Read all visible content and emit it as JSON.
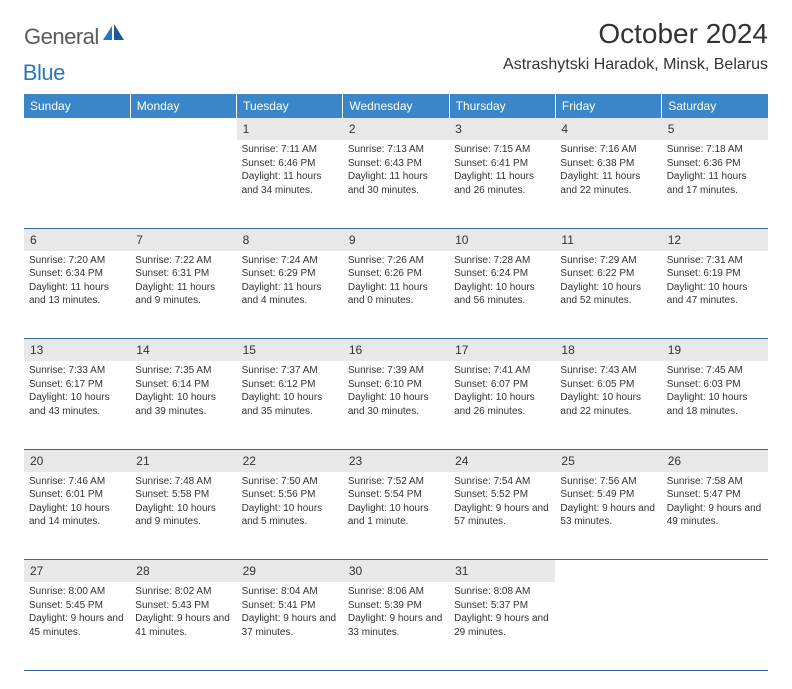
{
  "logo": {
    "text1": "General",
    "text2": "Blue"
  },
  "title": "October 2024",
  "location": "Astrashytski Haradok, Minsk, Belarus",
  "weekdays": [
    "Sunday",
    "Monday",
    "Tuesday",
    "Wednesday",
    "Thursday",
    "Friday",
    "Saturday"
  ],
  "colors": {
    "header_bg": "#3a86c8",
    "header_text": "#ffffff",
    "daynum_bg": "#e8e8e8",
    "border": "#3a6a9c",
    "logo_gray": "#5a5a5a",
    "logo_blue": "#2a77b8",
    "text": "#333333"
  },
  "weeks": [
    [
      null,
      null,
      {
        "n": "1",
        "sunrise": "Sunrise: 7:11 AM",
        "sunset": "Sunset: 6:46 PM",
        "daylight": "Daylight: 11 hours and 34 minutes."
      },
      {
        "n": "2",
        "sunrise": "Sunrise: 7:13 AM",
        "sunset": "Sunset: 6:43 PM",
        "daylight": "Daylight: 11 hours and 30 minutes."
      },
      {
        "n": "3",
        "sunrise": "Sunrise: 7:15 AM",
        "sunset": "Sunset: 6:41 PM",
        "daylight": "Daylight: 11 hours and 26 minutes."
      },
      {
        "n": "4",
        "sunrise": "Sunrise: 7:16 AM",
        "sunset": "Sunset: 6:38 PM",
        "daylight": "Daylight: 11 hours and 22 minutes."
      },
      {
        "n": "5",
        "sunrise": "Sunrise: 7:18 AM",
        "sunset": "Sunset: 6:36 PM",
        "daylight": "Daylight: 11 hours and 17 minutes."
      }
    ],
    [
      {
        "n": "6",
        "sunrise": "Sunrise: 7:20 AM",
        "sunset": "Sunset: 6:34 PM",
        "daylight": "Daylight: 11 hours and 13 minutes."
      },
      {
        "n": "7",
        "sunrise": "Sunrise: 7:22 AM",
        "sunset": "Sunset: 6:31 PM",
        "daylight": "Daylight: 11 hours and 9 minutes."
      },
      {
        "n": "8",
        "sunrise": "Sunrise: 7:24 AM",
        "sunset": "Sunset: 6:29 PM",
        "daylight": "Daylight: 11 hours and 4 minutes."
      },
      {
        "n": "9",
        "sunrise": "Sunrise: 7:26 AM",
        "sunset": "Sunset: 6:26 PM",
        "daylight": "Daylight: 11 hours and 0 minutes."
      },
      {
        "n": "10",
        "sunrise": "Sunrise: 7:28 AM",
        "sunset": "Sunset: 6:24 PM",
        "daylight": "Daylight: 10 hours and 56 minutes."
      },
      {
        "n": "11",
        "sunrise": "Sunrise: 7:29 AM",
        "sunset": "Sunset: 6:22 PM",
        "daylight": "Daylight: 10 hours and 52 minutes."
      },
      {
        "n": "12",
        "sunrise": "Sunrise: 7:31 AM",
        "sunset": "Sunset: 6:19 PM",
        "daylight": "Daylight: 10 hours and 47 minutes."
      }
    ],
    [
      {
        "n": "13",
        "sunrise": "Sunrise: 7:33 AM",
        "sunset": "Sunset: 6:17 PM",
        "daylight": "Daylight: 10 hours and 43 minutes."
      },
      {
        "n": "14",
        "sunrise": "Sunrise: 7:35 AM",
        "sunset": "Sunset: 6:14 PM",
        "daylight": "Daylight: 10 hours and 39 minutes."
      },
      {
        "n": "15",
        "sunrise": "Sunrise: 7:37 AM",
        "sunset": "Sunset: 6:12 PM",
        "daylight": "Daylight: 10 hours and 35 minutes."
      },
      {
        "n": "16",
        "sunrise": "Sunrise: 7:39 AM",
        "sunset": "Sunset: 6:10 PM",
        "daylight": "Daylight: 10 hours and 30 minutes."
      },
      {
        "n": "17",
        "sunrise": "Sunrise: 7:41 AM",
        "sunset": "Sunset: 6:07 PM",
        "daylight": "Daylight: 10 hours and 26 minutes."
      },
      {
        "n": "18",
        "sunrise": "Sunrise: 7:43 AM",
        "sunset": "Sunset: 6:05 PM",
        "daylight": "Daylight: 10 hours and 22 minutes."
      },
      {
        "n": "19",
        "sunrise": "Sunrise: 7:45 AM",
        "sunset": "Sunset: 6:03 PM",
        "daylight": "Daylight: 10 hours and 18 minutes."
      }
    ],
    [
      {
        "n": "20",
        "sunrise": "Sunrise: 7:46 AM",
        "sunset": "Sunset: 6:01 PM",
        "daylight": "Daylight: 10 hours and 14 minutes."
      },
      {
        "n": "21",
        "sunrise": "Sunrise: 7:48 AM",
        "sunset": "Sunset: 5:58 PM",
        "daylight": "Daylight: 10 hours and 9 minutes."
      },
      {
        "n": "22",
        "sunrise": "Sunrise: 7:50 AM",
        "sunset": "Sunset: 5:56 PM",
        "daylight": "Daylight: 10 hours and 5 minutes."
      },
      {
        "n": "23",
        "sunrise": "Sunrise: 7:52 AM",
        "sunset": "Sunset: 5:54 PM",
        "daylight": "Daylight: 10 hours and 1 minute."
      },
      {
        "n": "24",
        "sunrise": "Sunrise: 7:54 AM",
        "sunset": "Sunset: 5:52 PM",
        "daylight": "Daylight: 9 hours and 57 minutes."
      },
      {
        "n": "25",
        "sunrise": "Sunrise: 7:56 AM",
        "sunset": "Sunset: 5:49 PM",
        "daylight": "Daylight: 9 hours and 53 minutes."
      },
      {
        "n": "26",
        "sunrise": "Sunrise: 7:58 AM",
        "sunset": "Sunset: 5:47 PM",
        "daylight": "Daylight: 9 hours and 49 minutes."
      }
    ],
    [
      {
        "n": "27",
        "sunrise": "Sunrise: 8:00 AM",
        "sunset": "Sunset: 5:45 PM",
        "daylight": "Daylight: 9 hours and 45 minutes."
      },
      {
        "n": "28",
        "sunrise": "Sunrise: 8:02 AM",
        "sunset": "Sunset: 5:43 PM",
        "daylight": "Daylight: 9 hours and 41 minutes."
      },
      {
        "n": "29",
        "sunrise": "Sunrise: 8:04 AM",
        "sunset": "Sunset: 5:41 PM",
        "daylight": "Daylight: 9 hours and 37 minutes."
      },
      {
        "n": "30",
        "sunrise": "Sunrise: 8:06 AM",
        "sunset": "Sunset: 5:39 PM",
        "daylight": "Daylight: 9 hours and 33 minutes."
      },
      {
        "n": "31",
        "sunrise": "Sunrise: 8:08 AM",
        "sunset": "Sunset: 5:37 PM",
        "daylight": "Daylight: 9 hours and 29 minutes."
      },
      null,
      null
    ]
  ]
}
